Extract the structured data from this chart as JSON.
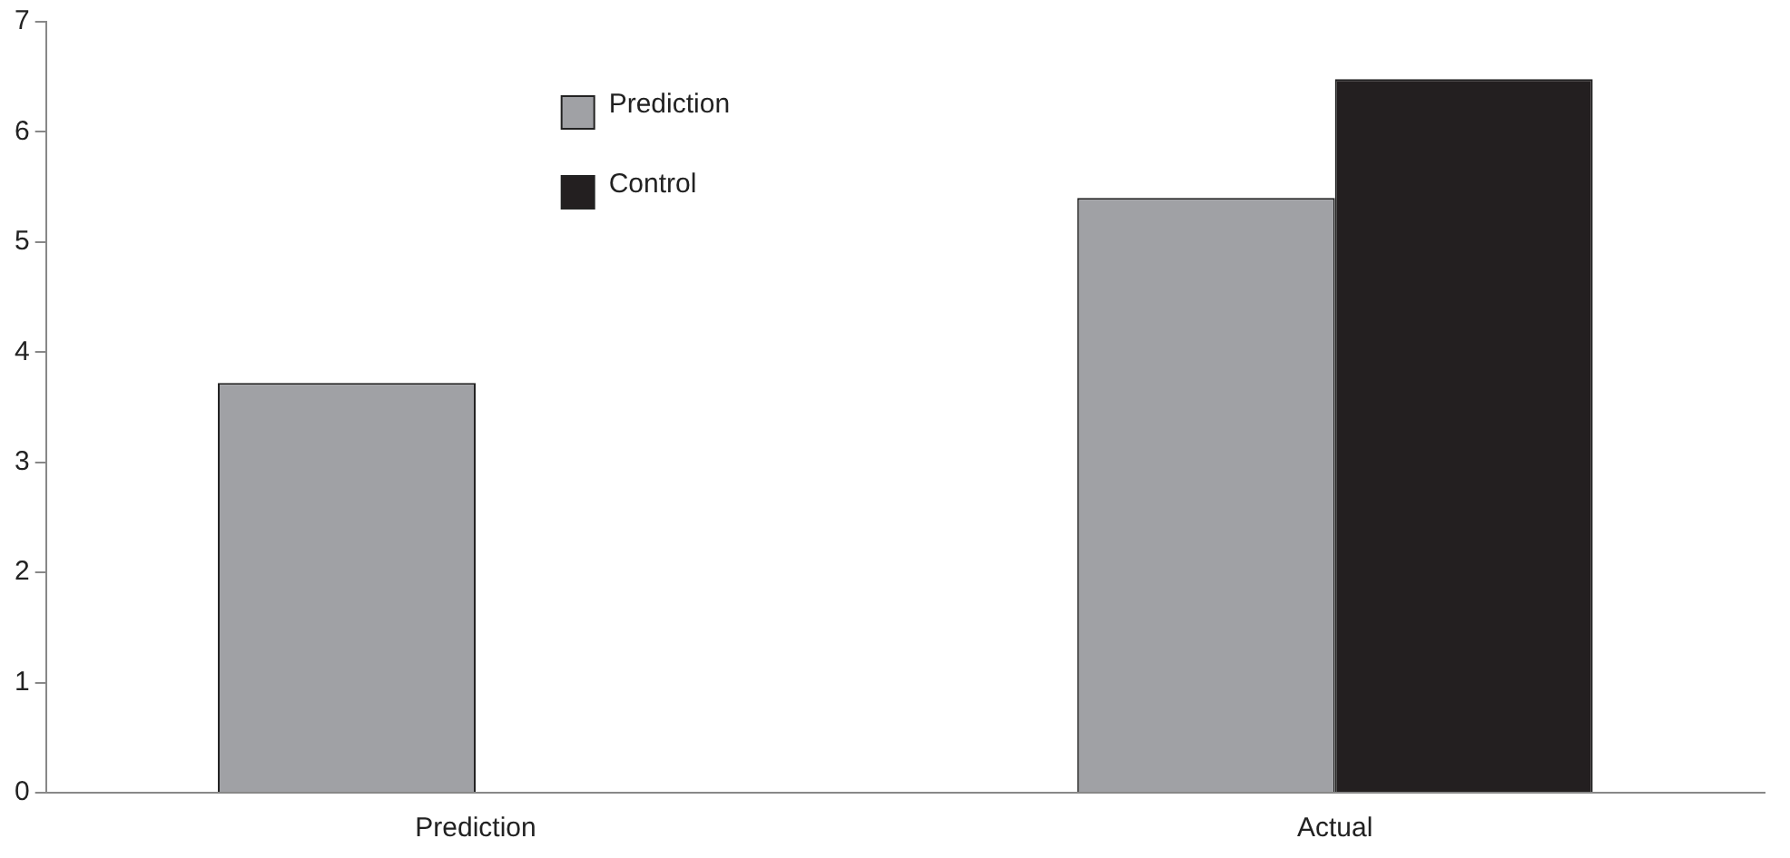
{
  "chart_data": {
    "type": "bar",
    "categories": [
      "Prediction",
      "Actual"
    ],
    "series": [
      {
        "name": "Prediction",
        "color": "#a0a1a5",
        "values": [
          3.72,
          5.4
        ]
      },
      {
        "name": "Control",
        "color": "#231f20",
        "values": [
          null,
          6.48
        ]
      }
    ],
    "ylim": [
      0,
      7
    ],
    "yticks": [
      0,
      1,
      2,
      3,
      4,
      5,
      6,
      7
    ],
    "grid": false,
    "legend": "top left"
  }
}
